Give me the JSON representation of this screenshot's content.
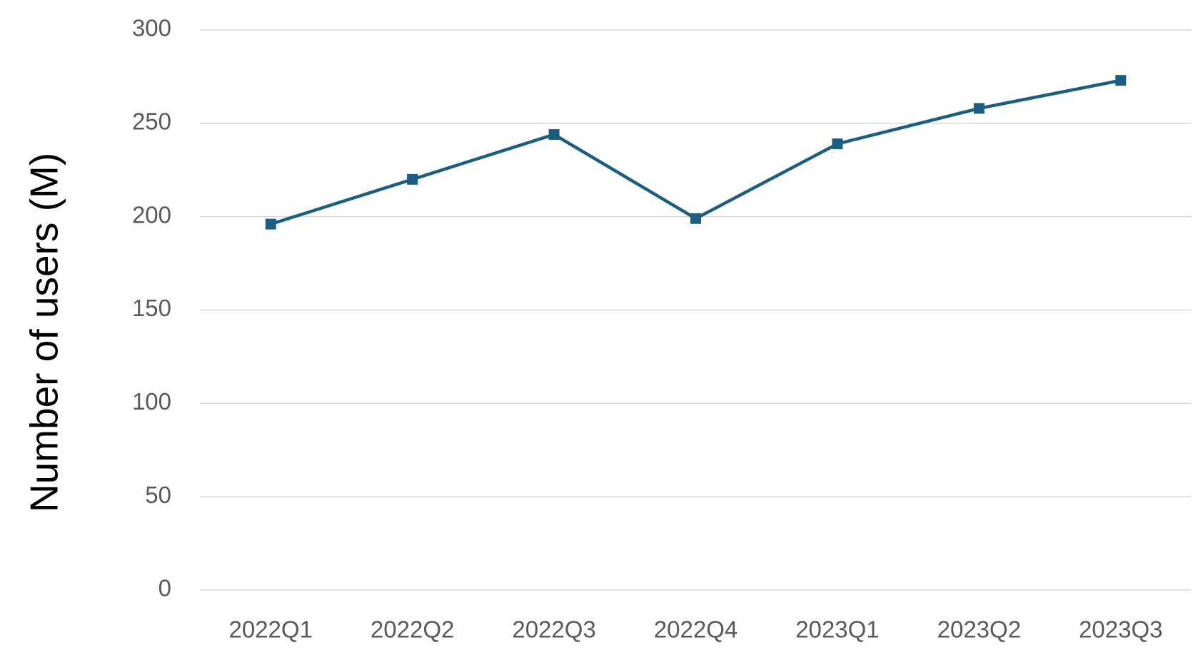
{
  "chart_data": {
    "type": "line",
    "y_axis_label": "Number of users (M)",
    "categories": [
      "2022Q1",
      "2022Q2",
      "2022Q3",
      "2022Q4",
      "2023Q1",
      "2023Q2",
      "2023Q3"
    ],
    "series": [
      {
        "name": "Number of users",
        "color": "#1b5e80",
        "values": [
          196,
          220,
          244,
          199,
          239,
          258,
          273
        ]
      }
    ],
    "ylim": [
      0,
      300
    ],
    "yticks": [
      0,
      50,
      100,
      150,
      200,
      250,
      300
    ],
    "grid": true
  }
}
